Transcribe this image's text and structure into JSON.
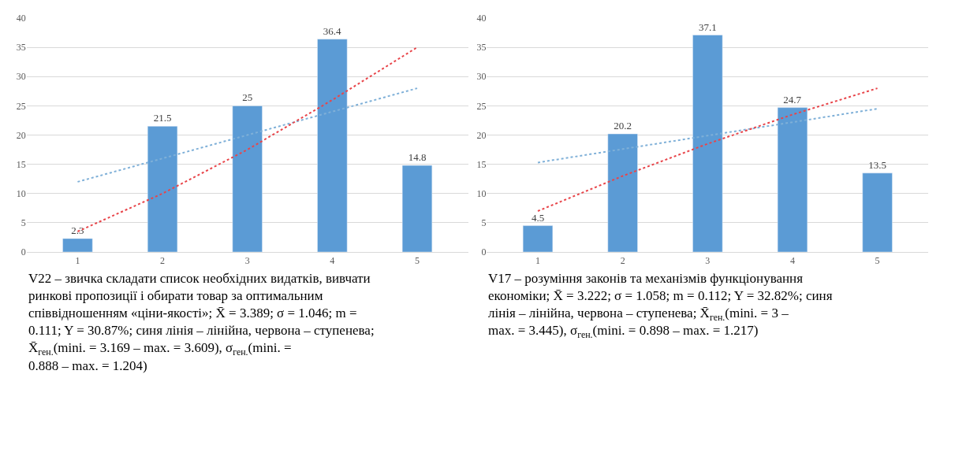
{
  "chart_data": [
    {
      "type": "bar",
      "categories": [
        "1",
        "2",
        "3",
        "4",
        "5"
      ],
      "grid": "y",
      "ylim": [
        0,
        40
      ],
      "yticks": [
        0,
        5,
        10,
        15,
        20,
        25,
        30,
        35,
        40
      ],
      "series": [
        {
          "color": "#5b9bd5",
          "values": [
            2.3,
            21.5,
            25,
            36.4,
            14.8
          ],
          "value_labels": [
            "2.3",
            "21.5",
            "25",
            "36.4",
            "14.8"
          ]
        },
        {
          "type": "line",
          "line_style": "dotted",
          "color": "#7fb0d8",
          "values": [
            12,
            16,
            20,
            24,
            28
          ]
        },
        {
          "type": "line",
          "line_style": "dotted",
          "color": "#e8454a",
          "values": [
            3.5,
            10,
            17.5,
            26,
            35
          ]
        }
      ],
      "annotations": [
        "V22 – звичка складати список необхідних видатків, вивчати ринкові пропозиції і обирати товар за оптимальним співвідношенням «ціни-якості»; X̄ = 3.389; σ = 1.046; m = 0.111; Y = 30.87%; синя лінія – лінійна, червона – ступенева; X̄$_{ген.}$(mini. = 3.169 – max. = 3.609), σ$_{ген.}$(mini. = 0.888 – max. = 1.204)"
      ]
    },
    {
      "type": "bar",
      "categories": [
        "1",
        "2",
        "3",
        "4",
        "5"
      ],
      "grid": "y",
      "ylim": [
        0,
        40
      ],
      "yticks": [
        0,
        5,
        10,
        15,
        20,
        25,
        30,
        35,
        40
      ],
      "series": [
        {
          "color": "#5b9bd5",
          "values": [
            4.5,
            20.2,
            37.1,
            24.7,
            13.5
          ],
          "value_labels": [
            "4.5",
            "20.2",
            "37.1",
            "24.7",
            "13.5"
          ]
        },
        {
          "type": "line",
          "line_style": "dotted",
          "color": "#7fb0d8",
          "values": [
            15.3,
            17.6,
            19.9,
            22.2,
            24.5
          ]
        },
        {
          "type": "line",
          "line_style": "dotted",
          "color": "#e8454a",
          "values": [
            7,
            13,
            18.5,
            23.5,
            28
          ]
        }
      ],
      "annotations": [
        "V17 – розуміння законів та механізмів функціонування економіки; X̄ = 3.222; σ = 1.058; m = 0.112; Y = 32.82%; синя лінія – лінійна, червона – ступенева; X̄$_{ген.}$(mini. = 3 – max. = 3.445), σ$_{ген.}$(mini. = 0.898 – max. = 1.217)"
      ]
    }
  ]
}
